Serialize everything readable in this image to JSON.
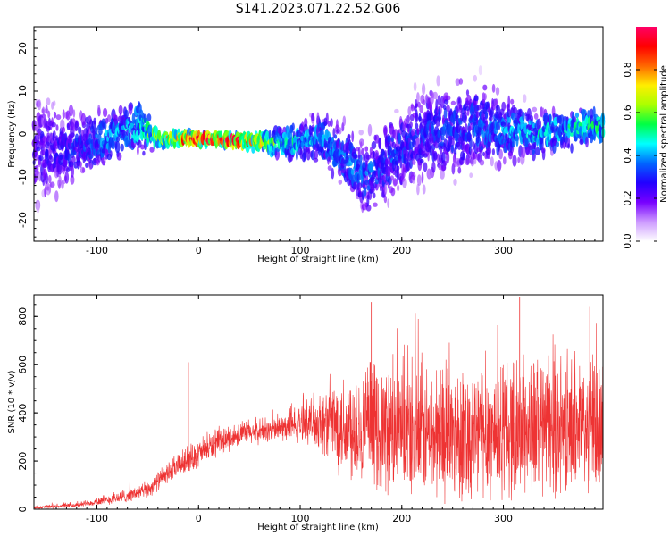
{
  "figure": {
    "title": "S141.2023.071.22.52.G06"
  },
  "chart_data": [
    {
      "type": "heatmap",
      "xlabel": "Height of straight line (km)",
      "ylabel": "Frequency (Hz)",
      "xlim": [
        -162,
        398
      ],
      "ylim": [
        -25,
        25
      ],
      "xticks": [
        -100,
        0,
        100,
        200,
        300
      ],
      "yticks": [
        -20,
        -10,
        0,
        10,
        20
      ],
      "colorbar": {
        "label": "Normalized spectral amplitude",
        "range": [
          0,
          1
        ],
        "ticks": [
          "0.0",
          "0.2",
          "0.4",
          "0.6",
          "0.8"
        ],
        "colors": [
          "#ffffff",
          "#cc99ff",
          "#7700ff",
          "#2200ff",
          "#0066ff",
          "#00ffff",
          "#00ff44",
          "#aaff00",
          "#ffee00",
          "#ff6600",
          "#ff0000",
          "#ff0066"
        ]
      },
      "ridge_profile": [
        {
          "x": -160,
          "center": -4,
          "spread": 16,
          "amp": 0.25
        },
        {
          "x": -120,
          "center": -3,
          "spread": 10,
          "amp": 0.3
        },
        {
          "x": -90,
          "center": -1,
          "spread": 7,
          "amp": 0.4
        },
        {
          "x": -60,
          "center": 2,
          "spread": 8,
          "amp": 0.45
        },
        {
          "x": -40,
          "center": -1,
          "spread": 2,
          "amp": 0.65
        },
        {
          "x": 0,
          "center": -1,
          "spread": 1.5,
          "amp": 0.95
        },
        {
          "x": 40,
          "center": -1.5,
          "spread": 1.5,
          "amp": 0.9
        },
        {
          "x": 80,
          "center": -2,
          "spread": 4,
          "amp": 0.5
        },
        {
          "x": 120,
          "center": -1,
          "spread": 7,
          "amp": 0.4
        },
        {
          "x": 165,
          "center": -10,
          "spread": 10,
          "amp": 0.35
        },
        {
          "x": 220,
          "center": 0,
          "spread": 14,
          "amp": 0.3
        },
        {
          "x": 280,
          "center": 2,
          "spread": 12,
          "amp": 0.35
        },
        {
          "x": 330,
          "center": 0,
          "spread": 6,
          "amp": 0.45
        },
        {
          "x": 398,
          "center": 2,
          "spread": 5,
          "amp": 0.5
        }
      ]
    },
    {
      "type": "line",
      "xlabel": "Height of straight line (km)",
      "ylabel": "SNR (10 * v/v)",
      "xlim": [
        -162,
        398
      ],
      "ylim": [
        0,
        890
      ],
      "xticks": [
        -100,
        0,
        100,
        200,
        300
      ],
      "yticks": [
        0,
        200,
        400,
        600,
        800
      ],
      "color": "#ee3333",
      "envelope": [
        {
          "x": -162,
          "base": 5,
          "amp": 15
        },
        {
          "x": -120,
          "base": 15,
          "amp": 20
        },
        {
          "x": -80,
          "base": 40,
          "amp": 50
        },
        {
          "x": -50,
          "base": 70,
          "amp": 70
        },
        {
          "x": -30,
          "base": 140,
          "amp": 90
        },
        {
          "x": -10,
          "base": 190,
          "amp": 110
        },
        {
          "x": 10,
          "base": 240,
          "amp": 120
        },
        {
          "x": 40,
          "base": 300,
          "amp": 100
        },
        {
          "x": 80,
          "base": 320,
          "amp": 110
        },
        {
          "x": 110,
          "base": 340,
          "amp": 180
        },
        {
          "x": 140,
          "base": 300,
          "amp": 450
        },
        {
          "x": 200,
          "base": 250,
          "amp": 560
        },
        {
          "x": 260,
          "base": 240,
          "amp": 580
        },
        {
          "x": 320,
          "base": 260,
          "amp": 600
        },
        {
          "x": 398,
          "base": 270,
          "amp": 580
        }
      ],
      "spikes": [
        {
          "x": -10,
          "y": 610
        },
        {
          "x": 170,
          "y": 860
        },
        {
          "x": 316,
          "y": 880
        },
        {
          "x": 385,
          "y": 840
        }
      ]
    }
  ]
}
